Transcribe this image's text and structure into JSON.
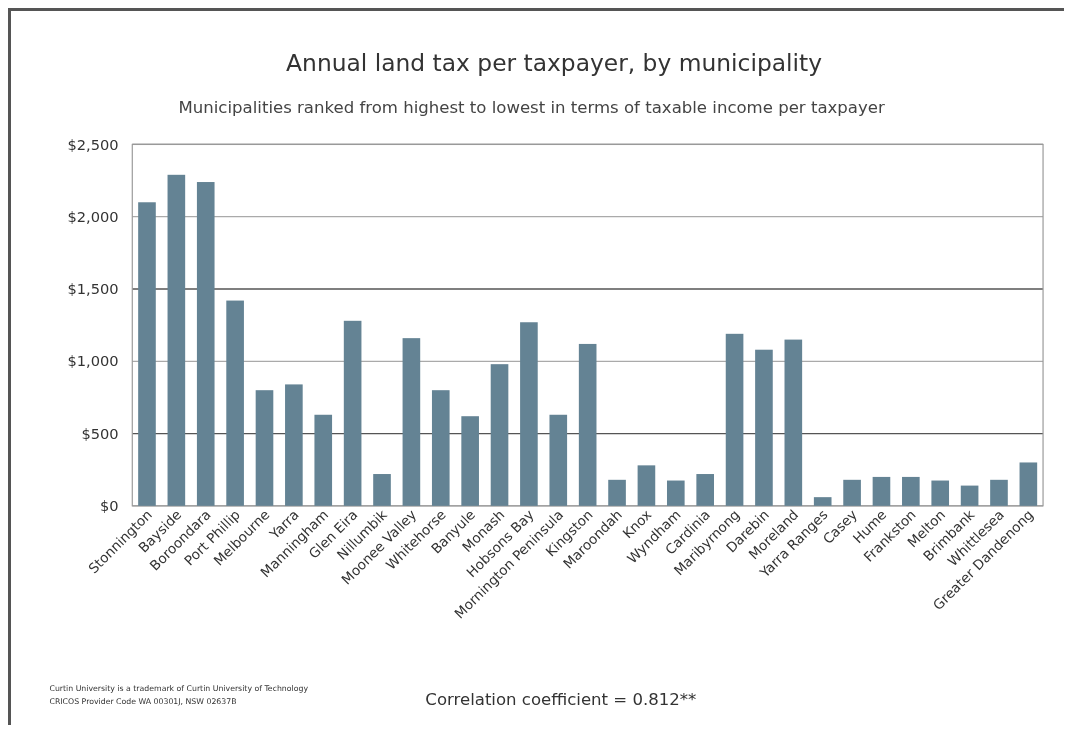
{
  "chart_data": {
    "type": "bar",
    "title": "Annual land tax per taxpayer, by municipality",
    "subtitle": "Municipalities ranked from highest to lowest in terms of taxable income per taxpayer",
    "categories": [
      "Stonnington",
      "Bayside",
      "Boroondara",
      "Port Phillip",
      "Melbourne",
      "Yarra",
      "Manningham",
      "Glen Eira",
      "Nillumbik",
      "Moonee Valley",
      "Whitehorse",
      "Banyule",
      "Monash",
      "Hobsons Bay",
      "Mornington Peninsula",
      "Kingston",
      "Maroondah",
      "Knox",
      "Wyndham",
      "Cardinia",
      "Maribyrnong",
      "Darebin",
      "Moreland",
      "Yarra Ranges",
      "Casey",
      "Hume",
      "Frankston",
      "Melton",
      "Brimbank",
      "Whittlesea",
      "Greater Dandenong"
    ],
    "values": [
      2100,
      2290,
      2240,
      1420,
      800,
      840,
      630,
      1280,
      220,
      1160,
      800,
      620,
      980,
      1270,
      630,
      1120,
      180,
      280,
      175,
      220,
      1190,
      1080,
      1150,
      60,
      180,
      200,
      200,
      175,
      140,
      180,
      300
    ],
    "color": "#648394",
    "ylim": [
      0,
      2500
    ],
    "yticks": [
      {
        "value": 0,
        "label": "$0"
      },
      {
        "value": 500,
        "label": "$500"
      },
      {
        "value": 1000,
        "label": "$1,000"
      },
      {
        "value": 1500,
        "label": "$1,500"
      },
      {
        "value": 2000,
        "label": "$2,000"
      },
      {
        "value": 2500,
        "label": "$2,500"
      }
    ],
    "grid": "y",
    "annotations": [
      "Correlation coefficient = 0.812**",
      "Curtin University is a trademark of Curtin University of Technology",
      "CRICOS Provider Code WA 00301J, NSW 02637B"
    ]
  }
}
